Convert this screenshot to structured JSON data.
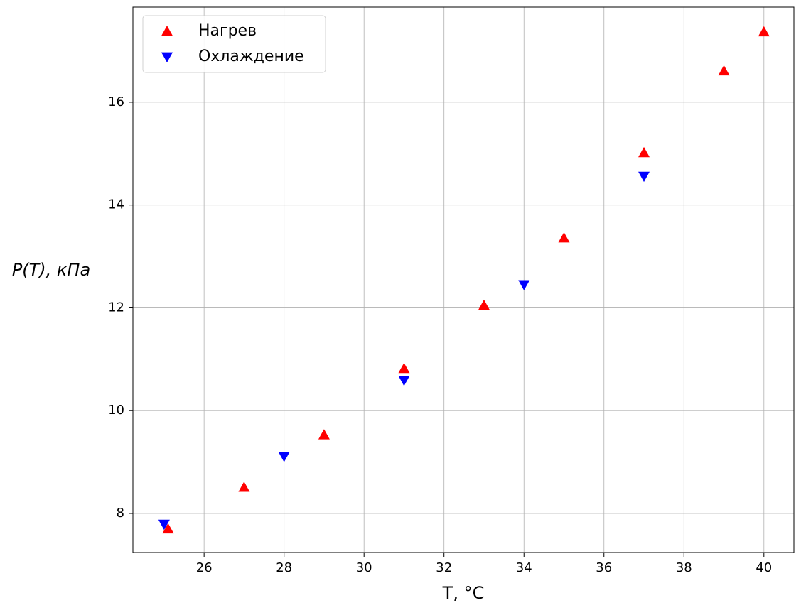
{
  "chart_data": {
    "type": "scatter",
    "x_label": "T, °C",
    "y_label": "P(T), кПа",
    "xlim": [
      24.22,
      40.75
    ],
    "ylim": [
      7.24,
      17.85
    ],
    "xticks": [
      26,
      28,
      30,
      32,
      34,
      36,
      38,
      40
    ],
    "yticks": [
      8,
      10,
      12,
      14,
      16
    ],
    "grid": true,
    "legend": "upper left",
    "series": [
      {
        "name": "Нагрев",
        "color": "#ff0000",
        "marker": "triangle-up",
        "x": [
          25.1,
          27,
          29,
          31,
          33,
          35,
          37,
          39,
          40
        ],
        "values": [
          7.7,
          8.51,
          9.53,
          10.82,
          12.05,
          13.36,
          15.02,
          16.61,
          17.37
        ]
      },
      {
        "name": "Охлаждение",
        "color": "#0000ff",
        "marker": "triangle-down",
        "x": [
          25,
          28,
          31,
          34,
          37
        ],
        "values": [
          7.79,
          9.11,
          10.59,
          12.45,
          14.56
        ]
      }
    ]
  }
}
